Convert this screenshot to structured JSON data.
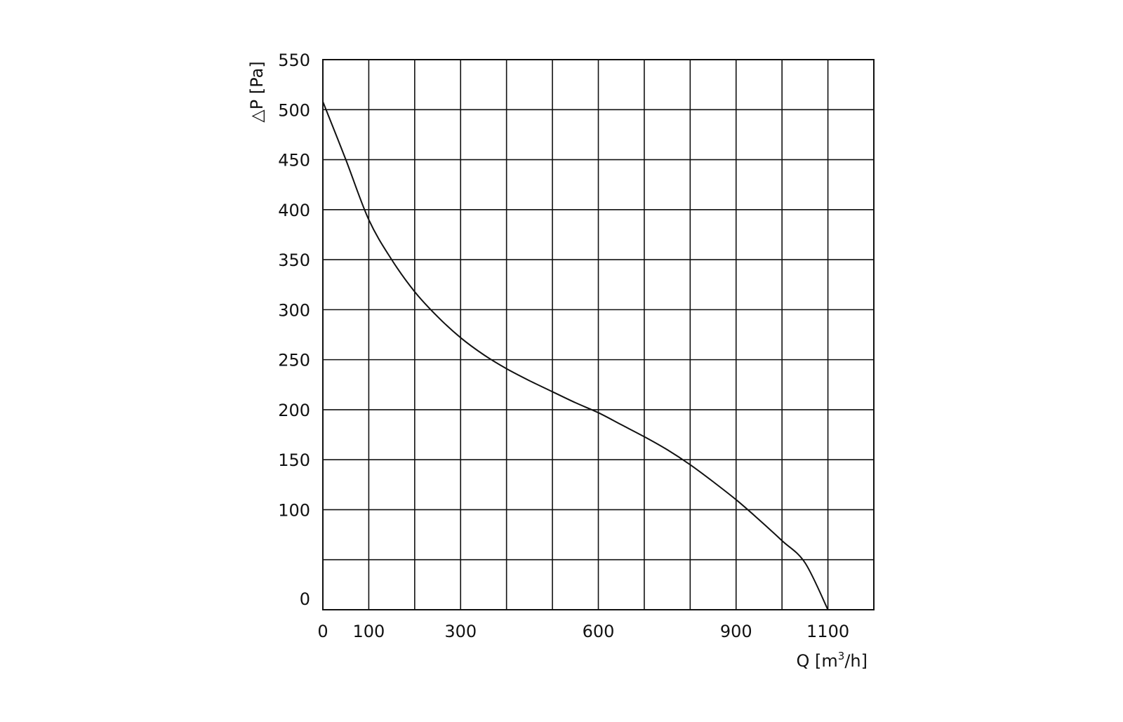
{
  "chart_data": {
    "type": "line",
    "title": "",
    "xlabel_parts": [
      "Q [m",
      "3",
      "/h]"
    ],
    "ylabel": "△P [Pa]",
    "xlim": [
      0,
      1200
    ],
    "ylim": [
      0,
      550
    ],
    "grid": true,
    "x_gridlines": [
      0,
      100,
      200,
      300,
      400,
      500,
      600,
      700,
      800,
      900,
      1000,
      1100,
      1200
    ],
    "y_gridlines": [
      0,
      50,
      100,
      150,
      200,
      250,
      300,
      350,
      400,
      450,
      500,
      550
    ],
    "x_tick_labels": [
      {
        "value": 0,
        "label": "0"
      },
      {
        "value": 100,
        "label": "100"
      },
      {
        "value": 300,
        "label": "300"
      },
      {
        "value": 600,
        "label": "600"
      },
      {
        "value": 900,
        "label": "900"
      },
      {
        "value": 1100,
        "label": "1100"
      }
    ],
    "y_tick_labels": [
      {
        "value": 0,
        "label": "0"
      },
      {
        "value": 100,
        "label": "100"
      },
      {
        "value": 150,
        "label": "150"
      },
      {
        "value": 200,
        "label": "200"
      },
      {
        "value": 250,
        "label": "250"
      },
      {
        "value": 300,
        "label": "300"
      },
      {
        "value": 350,
        "label": "350"
      },
      {
        "value": 400,
        "label": "400"
      },
      {
        "value": 450,
        "label": "450"
      },
      {
        "value": 500,
        "label": "500"
      },
      {
        "value": 550,
        "label": "550"
      }
    ],
    "series": [
      {
        "x": [
          0,
          50,
          100,
          150,
          200,
          250,
          300,
          350,
          400,
          450,
          500,
          550,
          600,
          650,
          700,
          750,
          800,
          850,
          900,
          950,
          1000,
          1050,
          1100
        ],
        "y": [
          508,
          450,
          390,
          350,
          318,
          293,
          272,
          255,
          241,
          229,
          218,
          207,
          197,
          185,
          173,
          160,
          145,
          128,
          110,
          90,
          69,
          47,
          0
        ]
      }
    ]
  }
}
